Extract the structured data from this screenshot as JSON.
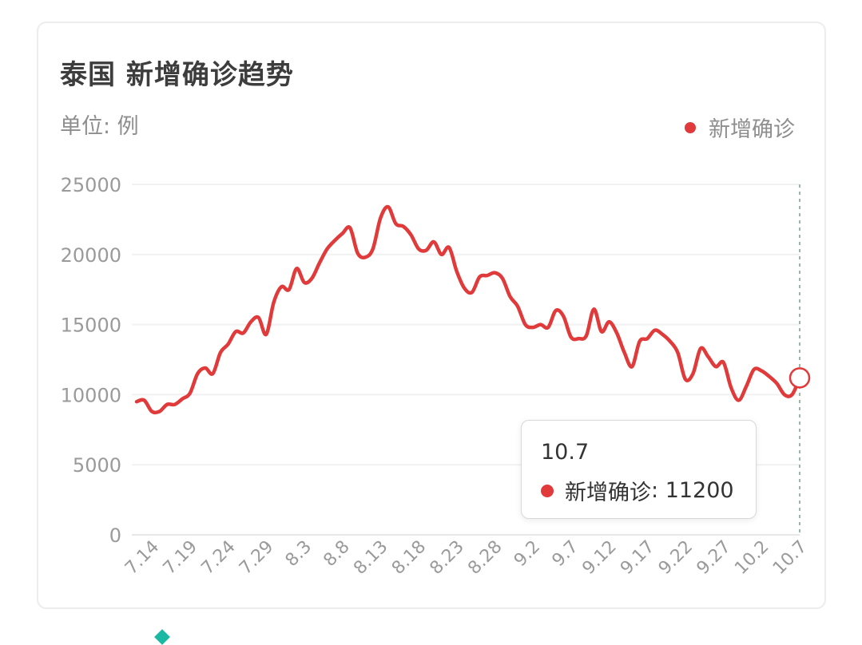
{
  "header": {
    "title": "泰国 新增确诊趋势",
    "unit": "单位: 例"
  },
  "legend": {
    "label": "新增确诊",
    "color": "#e03a3a"
  },
  "tooltip": {
    "date": "10.7",
    "series_label": "新增确诊",
    "value_text": "11200",
    "separator": ": "
  },
  "chart_data": {
    "type": "line",
    "title": "泰国 新增确诊趋势",
    "ylabel": "单位: 例",
    "ylim": [
      0,
      25000
    ],
    "y_ticks": [
      0,
      5000,
      10000,
      15000,
      20000,
      25000
    ],
    "x_tick_labels": [
      "7.14",
      "7.19",
      "7.24",
      "7.29",
      "8.3",
      "8.8",
      "8.13",
      "8.18",
      "8.23",
      "8.28",
      "9.2",
      "9.7",
      "9.12",
      "9.17",
      "9.22",
      "9.27",
      "10.2",
      "10.7"
    ],
    "grid": true,
    "legend_position": "top-right",
    "highlighted_point": {
      "x": "10.7",
      "y": 11200
    },
    "series": [
      {
        "name": "新增确诊",
        "color": "#e03a3a",
        "x": [
          "7.12",
          "7.13",
          "7.14",
          "7.15",
          "7.16",
          "7.17",
          "7.18",
          "7.19",
          "7.20",
          "7.21",
          "7.22",
          "7.23",
          "7.24",
          "7.25",
          "7.26",
          "7.27",
          "7.28",
          "7.29",
          "7.30",
          "7.31",
          "8.1",
          "8.2",
          "8.3",
          "8.4",
          "8.5",
          "8.6",
          "8.7",
          "8.8",
          "8.9",
          "8.10",
          "8.11",
          "8.12",
          "8.13",
          "8.14",
          "8.15",
          "8.16",
          "8.17",
          "8.18",
          "8.19",
          "8.20",
          "8.21",
          "8.22",
          "8.23",
          "8.24",
          "8.25",
          "8.26",
          "8.27",
          "8.28",
          "8.29",
          "8.30",
          "8.31",
          "9.1",
          "9.2",
          "9.3",
          "9.4",
          "9.5",
          "9.6",
          "9.7",
          "9.8",
          "9.9",
          "9.10",
          "9.11",
          "9.12",
          "9.13",
          "9.14",
          "9.15",
          "9.16",
          "9.17",
          "9.18",
          "9.19",
          "9.20",
          "9.21",
          "9.22",
          "9.23",
          "9.24",
          "9.25",
          "9.26",
          "9.27",
          "9.28",
          "9.29",
          "9.30",
          "10.1",
          "10.2",
          "10.3",
          "10.4",
          "10.5",
          "10.6",
          "10.7"
        ],
        "values": [
          9500,
          9600,
          8800,
          8800,
          9300,
          9300,
          9700,
          10100,
          11500,
          11900,
          11500,
          13000,
          13600,
          14500,
          14400,
          15200,
          15500,
          14300,
          16600,
          17700,
          17500,
          19000,
          18000,
          18300,
          19400,
          20400,
          21000,
          21500,
          21900,
          20100,
          19800,
          20400,
          22600,
          23400,
          22200,
          22000,
          21400,
          20400,
          20300,
          20900,
          20000,
          20500,
          18800,
          17600,
          17300,
          18400,
          18500,
          18700,
          18300,
          17000,
          16300,
          15000,
          14800,
          15000,
          14800,
          16000,
          15600,
          14100,
          14000,
          14200,
          16100,
          14500,
          15200,
          14400,
          13000,
          12000,
          13800,
          14000,
          14600,
          14300,
          13800,
          13000,
          11100,
          11500,
          13300,
          12700,
          12000,
          12300,
          10500,
          9600,
          10600,
          11800,
          11700,
          11300,
          10800,
          10000,
          10000,
          11200
        ]
      }
    ]
  }
}
